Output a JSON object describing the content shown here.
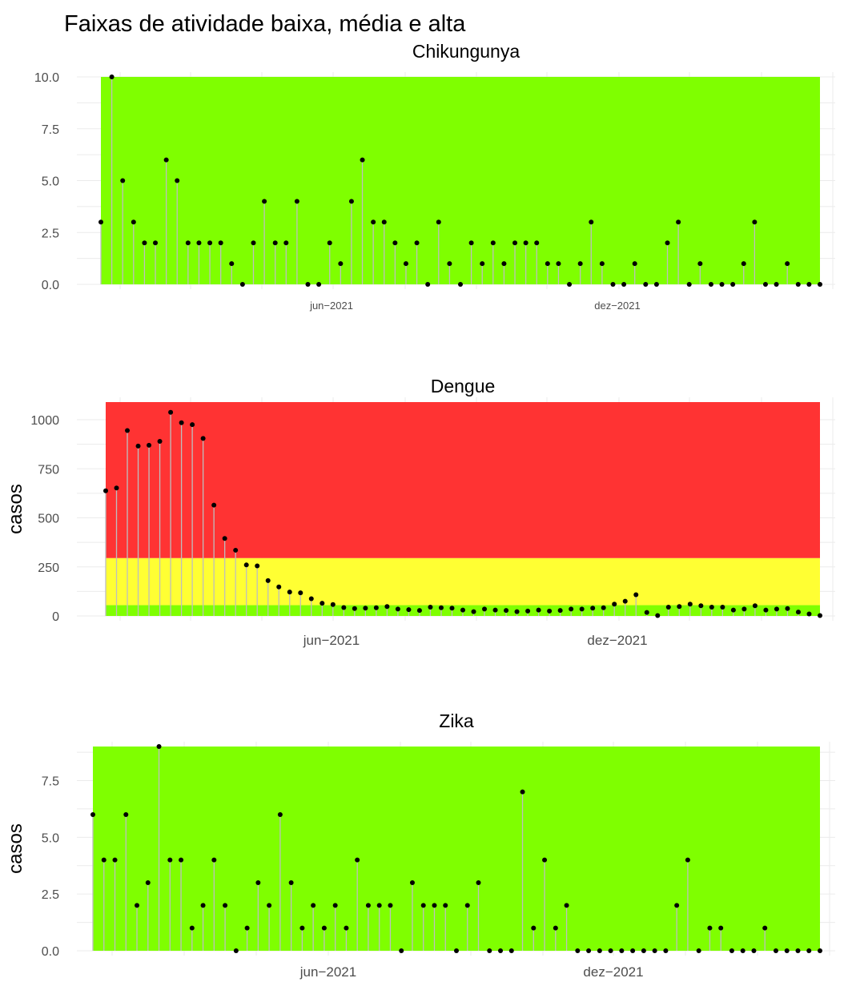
{
  "title": "Faixas de atividade baixa, média e alta",
  "colors": {
    "low": "#7fff00",
    "mid": "#ffff33",
    "high": "#ff3333",
    "stem": "#bebebe",
    "point": "#000000",
    "grid": "#ebebeb"
  },
  "chart_data": [
    {
      "type": "lollipop",
      "title": "Chikungunya",
      "ylabel": "",
      "ylim": [
        0,
        10
      ],
      "yticks": [
        "0.0",
        "2.5",
        "5.0",
        "7.5",
        "10.0"
      ],
      "xticks": [
        "jun−2021",
        "dez−2021"
      ],
      "x_range_weeks": [
        1,
        67
      ],
      "bands": [
        {
          "level": "low",
          "from": 0,
          "to": 10
        }
      ],
      "values": [
        3,
        10,
        5,
        3,
        2,
        2,
        6,
        5,
        2,
        2,
        2,
        2,
        1,
        0,
        2,
        4,
        2,
        2,
        4,
        0,
        0,
        2,
        1,
        4,
        6,
        3,
        3,
        2,
        1,
        2,
        0,
        3,
        1,
        0,
        2,
        1,
        2,
        1,
        2,
        2,
        2,
        1,
        1,
        0,
        1,
        3,
        1,
        0,
        0,
        1,
        0,
        0,
        2,
        3,
        0,
        1,
        0,
        0,
        0,
        1,
        3,
        0,
        0,
        1,
        0,
        0,
        0
      ]
    },
    {
      "type": "lollipop",
      "title": "Dengue",
      "ylabel": "casos",
      "ylim": [
        0,
        1090
      ],
      "yticks": [
        "0",
        "250",
        "500",
        "750",
        "1000"
      ],
      "xticks": [
        "jun−2021",
        "dez−2021"
      ],
      "x_range_weeks": [
        1,
        67
      ],
      "bands": [
        {
          "level": "low",
          "from": 0,
          "to": 55
        },
        {
          "level": "mid",
          "from": 55,
          "to": 295
        },
        {
          "level": "high",
          "from": 295,
          "to": 1090
        }
      ],
      "values": [
        638,
        652,
        945,
        866,
        870,
        890,
        1038,
        985,
        975,
        905,
        565,
        395,
        335,
        260,
        255,
        180,
        148,
        122,
        118,
        88,
        65,
        58,
        43,
        38,
        40,
        42,
        48,
        35,
        32,
        28,
        45,
        42,
        40,
        30,
        22,
        35,
        30,
        28,
        22,
        25,
        30,
        25,
        28,
        35,
        35,
        40,
        42,
        60,
        75,
        108,
        18,
        2,
        45,
        48,
        60,
        52,
        45,
        45,
        30,
        35,
        52,
        30,
        35,
        38,
        20,
        10,
        2
      ]
    },
    {
      "type": "lollipop",
      "title": "Zika",
      "ylabel": "casos",
      "ylim": [
        0,
        9
      ],
      "yticks": [
        "0.0",
        "2.5",
        "5.0",
        "7.5"
      ],
      "xticks": [
        "jun−2021",
        "dez−2021"
      ],
      "x_range_weeks": [
        1,
        67
      ],
      "bands": [
        {
          "level": "low",
          "from": 0,
          "to": 9
        }
      ],
      "values": [
        6,
        4,
        4,
        6,
        2,
        3,
        9,
        4,
        4,
        1,
        2,
        4,
        2,
        0,
        1,
        3,
        2,
        6,
        3,
        1,
        2,
        1,
        2,
        1,
        4,
        2,
        2,
        2,
        0,
        3,
        2,
        2,
        2,
        0,
        2,
        3,
        0,
        0,
        0,
        7,
        1,
        4,
        1,
        2,
        0,
        0,
        0,
        0,
        0,
        0,
        0,
        0,
        0,
        2,
        4,
        0,
        1,
        1,
        0,
        0,
        0,
        1,
        0,
        0,
        0,
        0,
        0
      ]
    }
  ]
}
